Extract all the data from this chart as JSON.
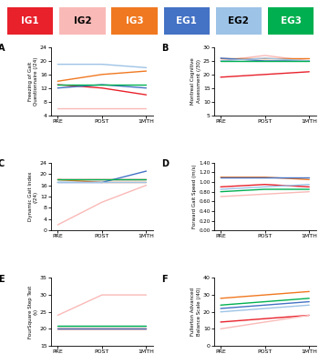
{
  "legend": {
    "labels": [
      "IG1",
      "IG2",
      "IG3",
      "EG1",
      "EG2",
      "EG3"
    ],
    "bg_colors": [
      "#e8212b",
      "#f9b9b7",
      "#f07820",
      "#4472c4",
      "#9dc3e6",
      "#00b050"
    ],
    "text_colors": [
      "#ffffff",
      "#000000",
      "#ffffff",
      "#ffffff",
      "#000000",
      "#ffffff"
    ]
  },
  "line_colors": {
    "IG1": "#e8212b",
    "IG2": "#f9b9b7",
    "IG3": "#f07820",
    "EG1": "#4472c4",
    "EG2": "#9dc3e6",
    "EG3": "#00b050"
  },
  "x_labels": [
    "PRE",
    "POST",
    "1MTH"
  ],
  "subplots": [
    {
      "label": "A",
      "ylabel": "Freezing of Gait\nQuestionnaire (/24)",
      "ylim": [
        4,
        24
      ],
      "yticks": [
        4,
        8,
        12,
        16,
        20,
        24
      ],
      "series": {
        "IG1": [
          13,
          12,
          10
        ],
        "IG2": [
          6,
          6,
          6
        ],
        "IG3": [
          14,
          16,
          17
        ],
        "EG1": [
          12,
          13,
          12
        ],
        "EG2": [
          19,
          19,
          18
        ],
        "EG3": [
          13,
          13,
          13
        ]
      }
    },
    {
      "label": "B",
      "ylabel": "Montreal Cognitive\nAssessment (/30)",
      "ylim": [
        5,
        30
      ],
      "yticks": [
        5,
        10,
        15,
        20,
        25,
        30
      ],
      "series": {
        "IG1": [
          19,
          20,
          21
        ],
        "IG2": [
          25,
          27,
          25
        ],
        "IG3": [
          26,
          26,
          26
        ],
        "EG1": [
          26,
          25,
          25
        ],
        "EG2": [
          25,
          26,
          25
        ],
        "EG3": [
          25,
          25,
          25
        ]
      }
    },
    {
      "label": "C",
      "ylabel": "Dynamic Gait Index\n(/24)",
      "ylim": [
        0,
        24
      ],
      "yticks": [
        0,
        4,
        8,
        12,
        16,
        20,
        24
      ],
      "series": {
        "IG1": [
          18,
          18,
          18
        ],
        "IG2": [
          2,
          10,
          16
        ],
        "IG3": [
          18,
          17,
          17
        ],
        "EG1": [
          17,
          17,
          21
        ],
        "EG2": [
          17,
          17,
          17
        ],
        "EG3": [
          18,
          18,
          18
        ]
      }
    },
    {
      "label": "D",
      "ylabel": "Forward Gait Speed (m/s)",
      "ylim": [
        0.0,
        1.4
      ],
      "yticks": [
        0.0,
        0.2,
        0.4,
        0.6,
        0.8,
        1.0,
        1.2,
        1.4
      ],
      "series": {
        "IG1": [
          0.9,
          0.95,
          0.9
        ],
        "IG2": [
          0.7,
          0.75,
          0.8
        ],
        "IG3": [
          1.1,
          1.1,
          1.05
        ],
        "EG1": [
          1.1,
          1.1,
          1.1
        ],
        "EG2": [
          0.85,
          0.9,
          0.95
        ],
        "EG3": [
          0.8,
          0.85,
          0.85
        ]
      }
    },
    {
      "label": "E",
      "ylabel": "FourSquare Step Test\n(s)",
      "ylim": [
        15,
        35
      ],
      "yticks": [
        15,
        20,
        25,
        30,
        35
      ],
      "series": {
        "IG1": [
          20,
          20,
          20
        ],
        "IG2": [
          24,
          30,
          30
        ],
        "IG3": [
          20,
          20,
          20
        ],
        "EG1": [
          20,
          20,
          20
        ],
        "EG2": [
          21,
          21,
          21
        ],
        "EG3": [
          21,
          21,
          21
        ]
      }
    },
    {
      "label": "F",
      "ylabel": "Fullerton Advanced\nBalance Scale (/40)",
      "ylim": [
        0,
        40
      ],
      "yticks": [
        0,
        10,
        20,
        30,
        40
      ],
      "series": {
        "IG1": [
          14,
          16,
          18
        ],
        "IG2": [
          10,
          14,
          18
        ],
        "IG3": [
          28,
          30,
          32
        ],
        "EG1": [
          22,
          24,
          26
        ],
        "EG2": [
          20,
          22,
          24
        ],
        "EG3": [
          24,
          26,
          28
        ]
      }
    }
  ]
}
